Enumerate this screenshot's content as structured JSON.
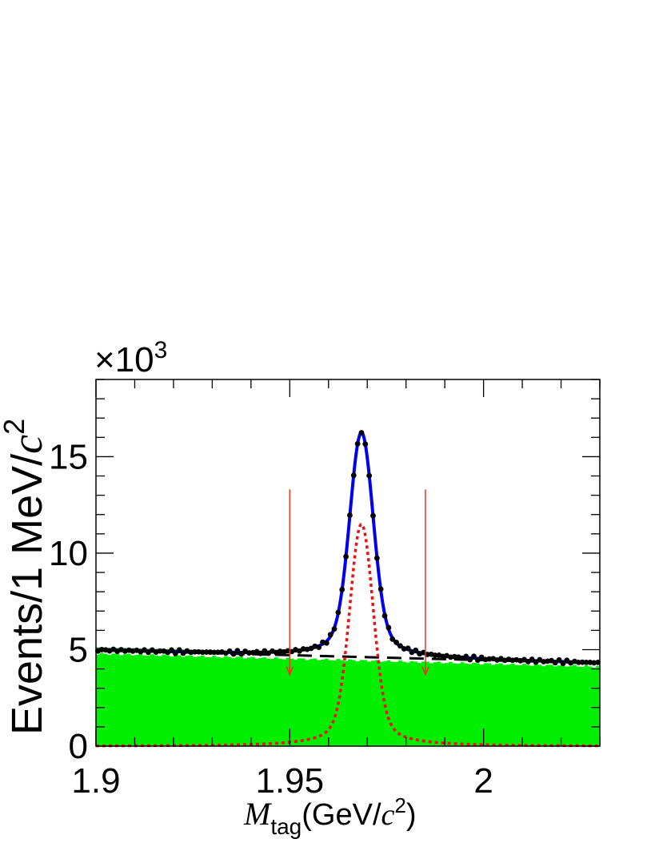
{
  "chart_data": {
    "type": "line",
    "x_axis": {
      "range": [
        1.9,
        2.03
      ],
      "ticks": [
        1.9,
        1.95,
        2.0
      ],
      "tick_labels": [
        "1.9",
        "1.95",
        "2"
      ],
      "label": {
        "symbol": "M",
        "subscript": "tag",
        "text_before_unit": "(GeV/",
        "unit_symbol": "c",
        "unit_power": "2",
        "text_after_unit": ")"
      }
    },
    "y_axis": {
      "range": [
        0,
        19
      ],
      "ticks": [
        0,
        5,
        10,
        15
      ],
      "tick_labels": [
        "0",
        "5",
        "10",
        "15"
      ],
      "multiplier": {
        "prefix": "×10",
        "power": "3"
      },
      "label": {
        "text": "Events/1 MeV/",
        "unit_symbol": "c",
        "unit_power": "2"
      }
    },
    "signal_window_arrows": [
      1.95,
      1.985
    ],
    "colors": {
      "fit": "#0000ee",
      "signal": "#ee1111",
      "background_fill": "#00ee00",
      "background_line": "#000000",
      "data": "#000000",
      "arrows": "#ee3322"
    },
    "model": {
      "peak_position": 1.9685,
      "peak_total": 16.25,
      "signal_peak": 11.5,
      "signal_sigma": 0.0029,
      "background_at_start": 4.97,
      "background_at_end": 4.3
    },
    "grid": false,
    "legend": "none"
  }
}
